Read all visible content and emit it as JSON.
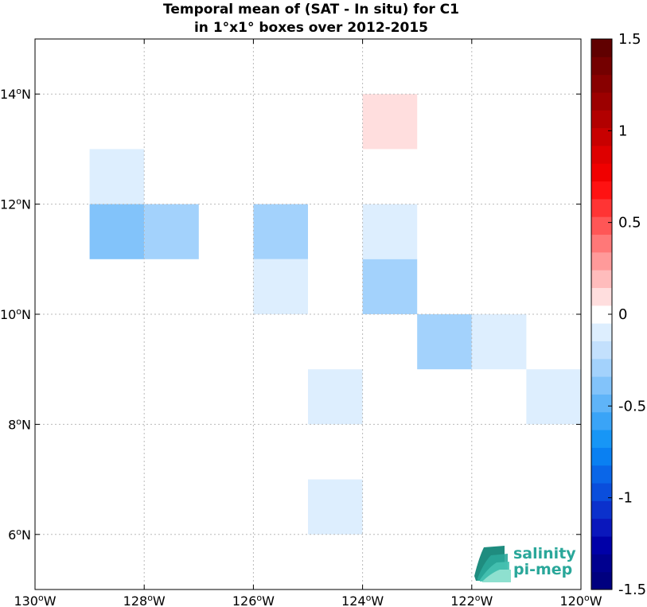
{
  "chart_data": {
    "type": "heatmap",
    "title_line1": "Temporal mean of (SAT - In situ) for C1",
    "title_line2": "in 1°x1° boxes over 2012-2015",
    "x_range": [
      -130,
      -120
    ],
    "y_range": [
      5,
      15
    ],
    "x_ticks": [
      {
        "value": -130,
        "label": "130",
        "hem": "W"
      },
      {
        "value": -128,
        "label": "128",
        "hem": "W"
      },
      {
        "value": -126,
        "label": "126",
        "hem": "W"
      },
      {
        "value": -124,
        "label": "124",
        "hem": "W"
      },
      {
        "value": -122,
        "label": "122",
        "hem": "W"
      },
      {
        "value": -120,
        "label": "120",
        "hem": "W"
      }
    ],
    "y_ticks": [
      {
        "value": 6,
        "label": "6",
        "hem": "N"
      },
      {
        "value": 8,
        "label": "8",
        "hem": "N"
      },
      {
        "value": 10,
        "label": "10",
        "hem": "N"
      },
      {
        "value": 12,
        "label": "12",
        "hem": "N"
      },
      {
        "value": 14,
        "label": "14",
        "hem": "N"
      }
    ],
    "grid": true,
    "cells": [
      {
        "lon": -129,
        "lat": 12,
        "value": -0.1
      },
      {
        "lon": -129,
        "lat": 11,
        "value": -0.35
      },
      {
        "lon": -128,
        "lat": 11,
        "value": -0.25
      },
      {
        "lon": -126,
        "lat": 11,
        "value": -0.25
      },
      {
        "lon": -126,
        "lat": 10,
        "value": -0.1
      },
      {
        "lon": -124,
        "lat": 13,
        "value": 0.1
      },
      {
        "lon": -124,
        "lat": 11,
        "value": -0.1
      },
      {
        "lon": -124,
        "lat": 10,
        "value": -0.25
      },
      {
        "lon": -123,
        "lat": 9,
        "value": -0.25
      },
      {
        "lon": -122,
        "lat": 9,
        "value": -0.1
      },
      {
        "lon": -125,
        "lat": 8,
        "value": -0.1
      },
      {
        "lon": -121,
        "lat": 8,
        "value": -0.1
      },
      {
        "lon": -125,
        "lat": 6,
        "value": -0.1
      }
    ],
    "colorbar": {
      "range": [
        -1.5,
        1.5
      ],
      "ticks": [
        {
          "value": 1.5,
          "label": "1.5"
        },
        {
          "value": 1,
          "label": "1"
        },
        {
          "value": 0.5,
          "label": "0.5"
        },
        {
          "value": 0,
          "label": "0"
        },
        {
          "value": -0.5,
          "label": "-0.5"
        },
        {
          "value": -1,
          "label": "-1"
        },
        {
          "value": -1.5,
          "label": "-1.5"
        }
      ],
      "colors": [
        "#00007f",
        "#00008f",
        "#0000a8",
        "#0a17bc",
        "#0b31cc",
        "#0a4edc",
        "#0a66e8",
        "#0a80f2",
        "#1796f6",
        "#3aa4f7",
        "#5fb4f8",
        "#82c3fa",
        "#a3d2fc",
        "#c3e0fd",
        "#ddeefe",
        "#ffffff",
        "#ffdede",
        "#ffbcbc",
        "#ff9a9a",
        "#ff7878",
        "#ff5656",
        "#ff3434",
        "#ff1212",
        "#f00000",
        "#de0000",
        "#c80000",
        "#b20000",
        "#9c0000",
        "#880000",
        "#740000",
        "#600000"
      ]
    }
  },
  "logo": {
    "line1": "salinity",
    "line2": "pi-mep",
    "color": "#2aa79a"
  }
}
